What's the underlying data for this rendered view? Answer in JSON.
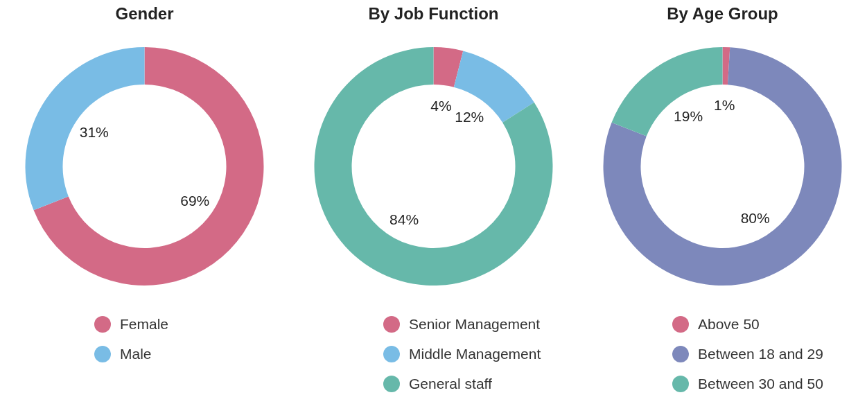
{
  "chart_data": [
    {
      "type": "donut",
      "title": "Gender",
      "categories": [
        "Female",
        "Male"
      ],
      "values": [
        69,
        31
      ],
      "value_labels": [
        "69%",
        "31%"
      ],
      "colors": [
        "#d36a86",
        "#79bce5"
      ],
      "legend": "bottom"
    },
    {
      "type": "donut",
      "title": "By Job Function",
      "categories": [
        "Senior Management",
        "Middle Management",
        "General staff"
      ],
      "values": [
        4,
        12,
        84
      ],
      "value_labels": [
        "4%",
        "12%",
        "84%"
      ],
      "colors": [
        "#d36a86",
        "#79bce5",
        "#66b8aa"
      ],
      "legend": "bottom"
    },
    {
      "type": "donut",
      "title": "By Age Group",
      "categories": [
        "Above 50",
        "Between 18 and 29",
        "Between 30 and 50"
      ],
      "values": [
        1,
        80,
        19
      ],
      "value_labels": [
        "1%",
        "80%",
        "19%"
      ],
      "colors": [
        "#d36a86",
        "#7d88bb",
        "#66b8aa"
      ],
      "legend": "bottom"
    }
  ]
}
